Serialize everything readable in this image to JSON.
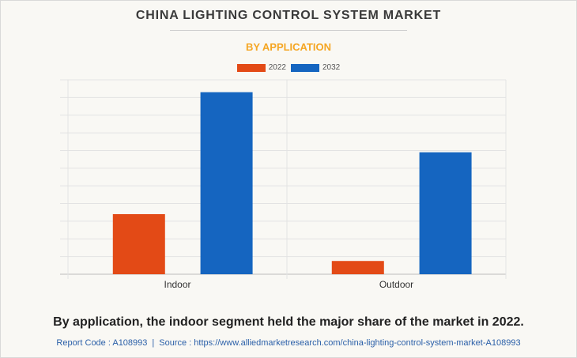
{
  "chart_data": {
    "type": "bar",
    "title": "CHINA LIGHTING CONTROL SYSTEM MARKET",
    "subtitle": "BY APPLICATION",
    "categories": [
      "Indoor",
      "Outdoor"
    ],
    "series": [
      {
        "name": "2022",
        "values": [
          3.4,
          0.75
        ],
        "color": "#e34a16"
      },
      {
        "name": "2032",
        "values": [
          10.3,
          6.9
        ],
        "color": "#1565c0"
      }
    ],
    "ylim": [
      0,
      11
    ],
    "grid": true,
    "legend_position": "top-center"
  },
  "caption": "By application, the indoor segment held the major share of the market in 2022.",
  "footer": {
    "report_code": "Report Code : A108993",
    "separator": "|",
    "source": "Source : https://www.alliedmarketresearch.com/china-lighting-control-system-market-A108993"
  }
}
